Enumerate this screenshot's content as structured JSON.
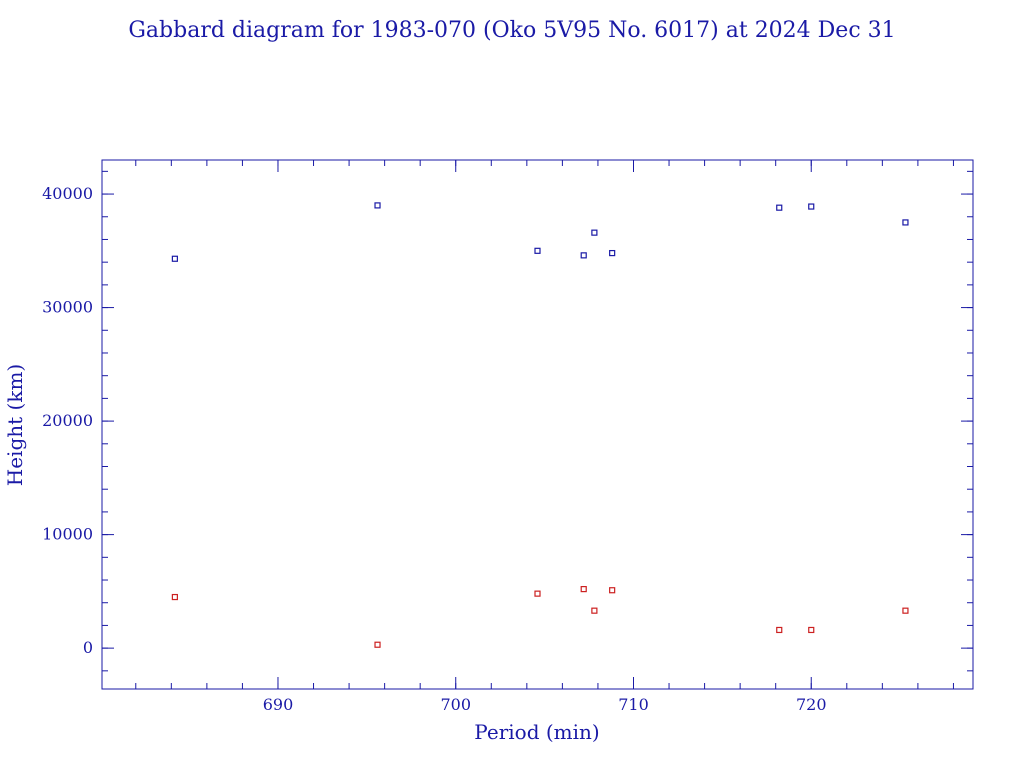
{
  "colors": {
    "frame": "#1a1aa6",
    "apogee": "#1a1aa6",
    "perigee": "#cc2020"
  },
  "chart_data": {
    "type": "scatter",
    "title": "Gabbard diagram for 1983-070 (Oko 5V95 No. 6017) at 2024 Dec 31",
    "xlabel": "Period (min)",
    "ylabel": "Height (km)",
    "xlim": [
      680.1,
      729.1
    ],
    "ylim": [
      -3600,
      43000
    ],
    "xticks": [
      690,
      700,
      710,
      720
    ],
    "yticks": [
      0,
      10000,
      20000,
      30000,
      40000
    ],
    "x_minor_step": 2,
    "y_minor_step": 2000,
    "grid": false,
    "series": [
      {
        "color": "#1a1aa6",
        "points": [
          [
            684.2,
            34300
          ],
          [
            695.6,
            39000
          ],
          [
            704.6,
            35000
          ],
          [
            707.2,
            34600
          ],
          [
            707.8,
            36600
          ],
          [
            708.8,
            34800
          ],
          [
            718.2,
            38800
          ],
          [
            720.0,
            38900
          ],
          [
            725.3,
            37500
          ]
        ]
      },
      {
        "color": "#cc2020",
        "points": [
          [
            684.2,
            4500
          ],
          [
            695.6,
            300
          ],
          [
            704.6,
            4800
          ],
          [
            707.2,
            5200
          ],
          [
            707.8,
            3300
          ],
          [
            708.8,
            5100
          ],
          [
            718.2,
            1600
          ],
          [
            720.0,
            1600
          ],
          [
            725.3,
            3300
          ]
        ]
      }
    ]
  }
}
